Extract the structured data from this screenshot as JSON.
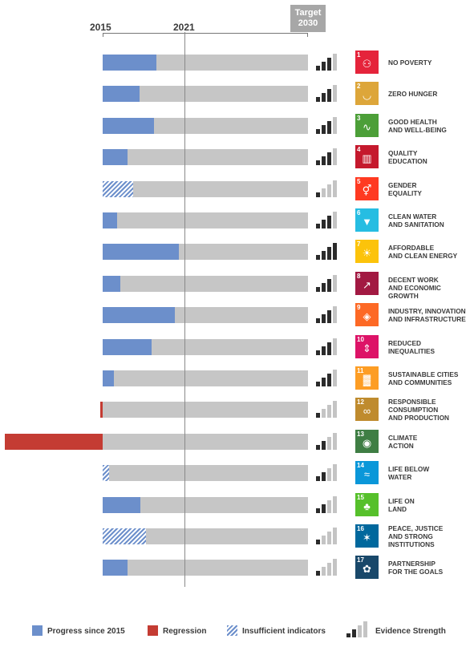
{
  "chart_data": {
    "type": "bar",
    "axis_labels": [
      "2015",
      "2021"
    ],
    "target_label": [
      "Target",
      "2030"
    ],
    "colors": {
      "progress": "#6c8fcb",
      "regression": "#c43c33",
      "track": "#c6c6c6",
      "evidence_dark": "#2b2b2b",
      "evidence_light": "#c4c4c4"
    },
    "goals": [
      {
        "num": "1",
        "label": [
          "NO POVERTY"
        ],
        "status": "progress",
        "value": 0.26,
        "evidence": 3,
        "color": "#e5243b",
        "icon": "people-icon"
      },
      {
        "num": "2",
        "label": [
          "ZERO HUNGER"
        ],
        "status": "progress",
        "value": 0.18,
        "evidence": 3,
        "color": "#dda63a",
        "icon": "bowl-icon"
      },
      {
        "num": "3",
        "label": [
          "GOOD HEALTH",
          "AND WELL-BEING"
        ],
        "status": "progress",
        "value": 0.25,
        "evidence": 3,
        "color": "#4c9f38",
        "icon": "heartbeat-icon"
      },
      {
        "num": "4",
        "label": [
          "QUALITY",
          "EDUCATION"
        ],
        "status": "progress",
        "value": 0.12,
        "evidence": 3,
        "color": "#c5192d",
        "icon": "book-icon"
      },
      {
        "num": "5",
        "label": [
          "GENDER",
          "EQUALITY"
        ],
        "status": "insufficient",
        "value": 0.15,
        "evidence": 1,
        "color": "#ff3a21",
        "icon": "gender-icon"
      },
      {
        "num": "6",
        "label": [
          "CLEAN WATER",
          "AND SANITATION"
        ],
        "status": "progress",
        "value": 0.07,
        "evidence": 3,
        "color": "#26bde2",
        "icon": "water-glass-icon"
      },
      {
        "num": "7",
        "label": [
          "AFFORDABLE",
          "AND CLEAN ENERGY"
        ],
        "status": "progress",
        "value": 0.37,
        "evidence": 4,
        "color": "#fcc30b",
        "icon": "sun-icon"
      },
      {
        "num": "8",
        "label": [
          "DECENT WORK",
          "AND ECONOMIC GROWTH"
        ],
        "status": "progress",
        "value": 0.085,
        "evidence": 3,
        "color": "#a21942",
        "icon": "growth-chart-icon"
      },
      {
        "num": "9",
        "label": [
          "INDUSTRY, INNOVATION",
          "AND INFRASTRUCTURE"
        ],
        "status": "progress",
        "value": 0.35,
        "evidence": 3,
        "color": "#fd6925",
        "icon": "cubes-icon"
      },
      {
        "num": "10",
        "label": [
          "REDUCED",
          "INEQUALITIES"
        ],
        "status": "progress",
        "value": 0.24,
        "evidence": 3,
        "color": "#dd1367",
        "icon": "equal-icon"
      },
      {
        "num": "11",
        "label": [
          "SUSTAINABLE CITIES",
          "AND COMMUNITIES"
        ],
        "status": "progress",
        "value": 0.055,
        "evidence": 3,
        "color": "#fd9d24",
        "icon": "buildings-icon"
      },
      {
        "num": "12",
        "label": [
          "RESPONSIBLE",
          "CONSUMPTION",
          "AND PRODUCTION"
        ],
        "status": "regression",
        "value": -0.01,
        "evidence": 1,
        "color": "#bf8b2e",
        "icon": "infinity-icon"
      },
      {
        "num": "13",
        "label": [
          "CLIMATE",
          "ACTION"
        ],
        "status": "regression",
        "value": -0.475,
        "evidence": 2,
        "color": "#3f7e44",
        "icon": "eye-globe-icon"
      },
      {
        "num": "14",
        "label": [
          "LIFE BELOW",
          "WATER"
        ],
        "status": "insufficient",
        "value": 0.03,
        "evidence": 2,
        "color": "#0a97d9",
        "icon": "fish-icon"
      },
      {
        "num": "15",
        "label": [
          "LIFE ON",
          "LAND"
        ],
        "status": "progress",
        "value": 0.185,
        "evidence": 2,
        "color": "#56c02b",
        "icon": "tree-icon"
      },
      {
        "num": "16",
        "label": [
          "PEACE, JUSTICE",
          "AND STRONG",
          "INSTITUTIONS"
        ],
        "status": "insufficient",
        "value": 0.21,
        "evidence": 1,
        "color": "#00689d",
        "icon": "dove-icon"
      },
      {
        "num": "17",
        "label": [
          "PARTNERSHIP",
          "FOR THE GOALS"
        ],
        "status": "progress",
        "value": 0.12,
        "evidence": 1,
        "color": "#19486a",
        "icon": "flower-icon"
      }
    ],
    "legend": [
      {
        "key": "progress",
        "label": "Progress since 2015"
      },
      {
        "key": "regression",
        "label": "Regression"
      },
      {
        "key": "insufficient",
        "label": "Insufficient indicators"
      },
      {
        "key": "evidence",
        "label": "Evidence Strength"
      }
    ]
  }
}
